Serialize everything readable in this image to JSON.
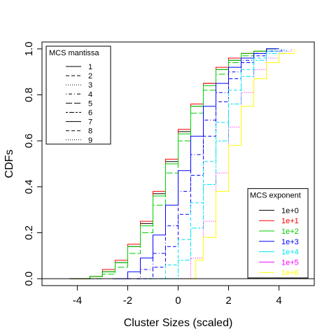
{
  "chart_data": {
    "type": "line",
    "xlabel": "Cluster Sizes (scaled)",
    "ylabel": "CDFs",
    "xlim": [
      -5.4,
      5.4
    ],
    "ylim": [
      -0.03,
      1.03
    ],
    "x_ticks": [
      -4,
      -2,
      0,
      2,
      4
    ],
    "x_tick_labels": [
      "-4",
      "-2",
      "0",
      "2",
      "4"
    ],
    "y_ticks": [
      0.0,
      0.2,
      0.4,
      0.6,
      0.8,
      1.0
    ],
    "y_tick_labels": [
      "0.0",
      "0.2",
      "0.4",
      "0.6",
      "0.8",
      "1.0"
    ],
    "grid": false,
    "reference_line_y": 0,
    "legend_mantissa": {
      "title": "MCS mantissa",
      "placement": "top-left",
      "entries": [
        {
          "label": "1",
          "dash": "solid"
        },
        {
          "label": "2",
          "dash": "dashed"
        },
        {
          "label": "3",
          "dash": "dotted"
        },
        {
          "label": "4",
          "dash": "dotdash"
        },
        {
          "label": "5",
          "dash": "longdash"
        },
        {
          "label": "6",
          "dash": "twodash"
        },
        {
          "label": "7",
          "dash": "solid"
        },
        {
          "label": "8",
          "dash": "dashed"
        },
        {
          "label": "9",
          "dash": "dotted"
        }
      ]
    },
    "legend_exponent": {
      "title": "MCS exponent",
      "placement": "bottom-right",
      "entries": [
        {
          "label": "1e+0",
          "color": "#000000"
        },
        {
          "label": "1e+1",
          "color": "#ff0000"
        },
        {
          "label": "1e+2",
          "color": "#00cd00"
        },
        {
          "label": "1e+3",
          "color": "#0000ff"
        },
        {
          "label": "1e+4",
          "color": "#00e5ee"
        },
        {
          "label": "1e+5",
          "color": "#ff00ff"
        },
        {
          "label": "1e+6",
          "color": "#ffff00"
        }
      ]
    },
    "series": [
      {
        "exponent": "1e+0",
        "mantissa": "1",
        "color": "#000000",
        "x": [
          -4.3,
          -3.5,
          -3.0,
          -2.5,
          -2.0,
          -1.5,
          -1.0,
          -0.5,
          0.0,
          0.5,
          1.0,
          1.5,
          2.0,
          2.5,
          3.0,
          3.5,
          3.9
        ],
        "y": [
          0.0,
          0.01,
          0.03,
          0.07,
          0.14,
          0.24,
          0.37,
          0.51,
          0.64,
          0.75,
          0.85,
          0.91,
          0.95,
          0.98,
          0.99,
          1.0,
          1.0
        ]
      },
      {
        "exponent": "1e+1",
        "mantissa": "1",
        "color": "#ff0000",
        "x": [
          -4.3,
          -3.5,
          -3.0,
          -2.5,
          -2.0,
          -1.5,
          -1.0,
          -0.5,
          0.0,
          0.5,
          1.0,
          1.5,
          2.0,
          2.5,
          3.0,
          3.5,
          3.9
        ],
        "y": [
          0.0,
          0.01,
          0.04,
          0.08,
          0.15,
          0.25,
          0.38,
          0.52,
          0.65,
          0.76,
          0.85,
          0.92,
          0.96,
          0.98,
          0.99,
          1.0,
          1.0
        ]
      },
      {
        "exponent": "1e+2",
        "mantissa": "1",
        "color": "#00cd00",
        "x": [
          -4.2,
          -3.5,
          -3.0,
          -2.5,
          -2.0,
          -1.5,
          -1.0,
          -0.5,
          0.0,
          0.5,
          1.0,
          1.5,
          2.0,
          2.5,
          3.0,
          3.5,
          3.9
        ],
        "y": [
          0.0,
          0.01,
          0.03,
          0.07,
          0.14,
          0.23,
          0.36,
          0.5,
          0.63,
          0.75,
          0.84,
          0.91,
          0.95,
          0.98,
          0.99,
          1.0,
          1.0
        ]
      },
      {
        "exponent": "1e+2",
        "mantissa": "5",
        "color": "#00cd00",
        "x": [
          -3.6,
          -3.0,
          -2.5,
          -2.0,
          -1.5,
          -1.0,
          -0.5,
          0.0,
          0.5,
          1.0,
          1.5,
          2.0,
          2.5,
          3.0,
          3.5,
          4.0
        ],
        "y": [
          0.0,
          0.02,
          0.05,
          0.11,
          0.2,
          0.32,
          0.46,
          0.6,
          0.72,
          0.82,
          0.89,
          0.94,
          0.97,
          0.99,
          1.0,
          1.0
        ]
      },
      {
        "exponent": "1e+3",
        "mantissa": "1",
        "color": "#0000ff",
        "x": [
          -2.6,
          -2.0,
          -1.5,
          -1.0,
          -0.5,
          0.0,
          0.5,
          1.0,
          1.5,
          2.0,
          2.5,
          3.0,
          3.5,
          4.0
        ],
        "y": [
          0.0,
          0.03,
          0.09,
          0.19,
          0.32,
          0.47,
          0.62,
          0.75,
          0.85,
          0.92,
          0.96,
          0.98,
          1.0,
          1.0
        ]
      },
      {
        "exponent": "1e+3",
        "mantissa": "4",
        "color": "#0000ff",
        "x": [
          -2.1,
          -1.5,
          -1.0,
          -0.5,
          0.0,
          0.5,
          1.0,
          1.5,
          2.0,
          2.5,
          3.0,
          3.5,
          4.1
        ],
        "y": [
          0.0,
          0.04,
          0.11,
          0.23,
          0.38,
          0.54,
          0.69,
          0.81,
          0.9,
          0.95,
          0.98,
          0.99,
          1.0
        ]
      },
      {
        "exponent": "1e+3",
        "mantissa": "8",
        "color": "#0000ff",
        "x": [
          -1.6,
          -1.0,
          -0.5,
          0.0,
          0.5,
          1.0,
          1.5,
          2.0,
          2.5,
          3.0,
          3.5,
          4.1
        ],
        "y": [
          0.0,
          0.05,
          0.14,
          0.28,
          0.45,
          0.62,
          0.77,
          0.87,
          0.94,
          0.97,
          0.99,
          1.0
        ]
      },
      {
        "exponent": "1e+4",
        "mantissa": "2",
        "color": "#00e5ee",
        "x": [
          -1.2,
          -0.5,
          0.0,
          0.5,
          1.0,
          1.5,
          2.0,
          2.5,
          3.0,
          3.5,
          4.2
        ],
        "y": [
          0.0,
          0.06,
          0.17,
          0.33,
          0.51,
          0.68,
          0.82,
          0.91,
          0.96,
          0.99,
          1.0
        ]
      },
      {
        "exponent": "1e+4",
        "mantissa": "6",
        "color": "#00e5ee",
        "x": [
          -0.7,
          0.0,
          0.5,
          1.0,
          1.5,
          2.0,
          2.5,
          3.0,
          3.5,
          4.3
        ],
        "y": [
          0.0,
          0.08,
          0.22,
          0.41,
          0.6,
          0.76,
          0.88,
          0.95,
          0.98,
          1.0
        ]
      },
      {
        "exponent": "1e+5",
        "mantissa": "3",
        "color": "#ff00ff",
        "x": [
          0.0,
          0.5,
          1.0,
          1.5,
          2.0,
          2.5,
          3.0,
          3.5,
          4.0,
          4.5
        ],
        "y": [
          0.0,
          0.09,
          0.25,
          0.46,
          0.66,
          0.81,
          0.91,
          0.96,
          0.99,
          1.0
        ]
      },
      {
        "exponent": "1e+6",
        "mantissa": "1",
        "color": "#ffff00",
        "x": [
          0.3,
          0.7,
          1.0,
          1.5,
          2.0,
          2.5,
          3.0,
          3.5,
          4.0,
          4.6
        ],
        "y": [
          0.0,
          0.08,
          0.18,
          0.38,
          0.58,
          0.75,
          0.87,
          0.94,
          0.98,
          1.0
        ]
      }
    ]
  }
}
